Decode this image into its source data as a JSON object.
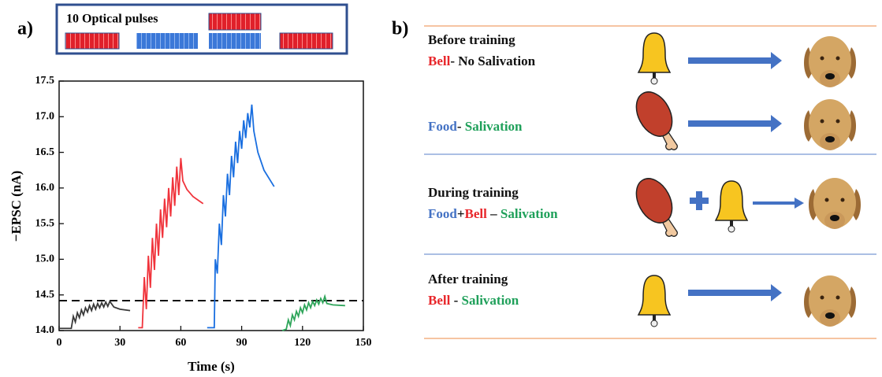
{
  "panel_labels": [
    "a)",
    "b)"
  ],
  "chart_data": {
    "type": "line",
    "inset_label": "10 Optical pulses",
    "x_label": "Time (s)",
    "y_label": "−EPSC (nA)",
    "xlim": [
      0,
      150
    ],
    "xticks": [
      0,
      30,
      60,
      90,
      120,
      150
    ],
    "ylim": [
      14.0,
      17.5
    ],
    "yticks": [
      {
        "value": 14.0,
        "label": "14.0"
      },
      14.5,
      {
        "value": 15.0,
        "label": "15.0"
      },
      15.5,
      {
        "value": 16.0,
        "label": "16.0"
      },
      16.5,
      {
        "value": 17.0,
        "label": "17.0"
      },
      17.5
    ],
    "reference_line": 14.42,
    "series": [
      {
        "color": "#3a3a3a",
        "x": [
          0,
          6,
          7,
          8,
          9,
          10,
          11,
          12,
          13,
          14,
          15,
          16,
          17,
          18,
          19,
          20,
          21,
          22,
          23,
          24,
          25,
          27,
          30,
          35
        ],
        "values": [
          14.03,
          14.03,
          14.2,
          14.12,
          14.25,
          14.18,
          14.29,
          14.22,
          14.32,
          14.26,
          14.35,
          14.28,
          14.37,
          14.3,
          14.38,
          14.32,
          14.39,
          14.33,
          14.4,
          14.34,
          14.41,
          14.33,
          14.3,
          14.28
        ]
      },
      {
        "color": "#f0343c",
        "x": [
          39,
          41,
          42,
          43,
          44,
          45,
          46,
          47,
          48,
          49,
          50,
          51,
          52,
          53,
          54,
          55,
          56,
          57,
          58,
          59,
          60,
          61,
          63,
          66,
          71
        ],
        "values": [
          14.04,
          14.04,
          14.75,
          14.3,
          15.05,
          14.6,
          15.3,
          14.85,
          15.5,
          15.05,
          15.7,
          15.3,
          15.85,
          15.45,
          16.0,
          15.6,
          16.15,
          15.75,
          16.3,
          15.9,
          16.42,
          16.1,
          15.98,
          15.88,
          15.78
        ]
      },
      {
        "color": "#1a6fe0",
        "x": [
          73,
          76.5,
          77,
          78,
          79,
          80,
          81,
          82,
          83,
          84,
          85,
          86,
          87,
          88,
          89,
          90,
          91,
          92,
          93,
          94,
          95,
          96,
          98,
          101,
          106
        ],
        "values": [
          14.04,
          14.04,
          15.0,
          14.8,
          15.5,
          15.2,
          15.9,
          15.6,
          16.2,
          15.9,
          16.45,
          16.15,
          16.65,
          16.35,
          16.8,
          16.55,
          16.95,
          16.7,
          17.05,
          16.85,
          17.17,
          16.8,
          16.5,
          16.25,
          16.02
        ]
      },
      {
        "color": "#2ea55a",
        "x": [
          110,
          112,
          113,
          114,
          115,
          116,
          117,
          118,
          119,
          120,
          121,
          122,
          123,
          124,
          125,
          126,
          127,
          128,
          129,
          130,
          131,
          132,
          135,
          141
        ],
        "values": [
          14.0,
          14.02,
          14.15,
          14.07,
          14.22,
          14.15,
          14.27,
          14.2,
          14.32,
          14.25,
          14.36,
          14.29,
          14.39,
          14.32,
          14.41,
          14.35,
          14.43,
          14.37,
          14.45,
          14.39,
          14.48,
          14.38,
          14.36,
          14.35
        ]
      }
    ]
  },
  "diagram": {
    "rows": [
      {
        "heading": "Before training",
        "relation": [
          "Bell",
          "- No Salivation"
        ]
      },
      {
        "relation": [
          "Food",
          "- ",
          "Salivation"
        ]
      },
      {
        "heading": "During training",
        "relation": [
          "Food",
          "+",
          "Bell",
          " – ",
          "Salivation"
        ]
      },
      {
        "heading": "After training",
        "relation": [
          "Bell",
          " - ",
          "Salivation"
        ]
      }
    ]
  }
}
